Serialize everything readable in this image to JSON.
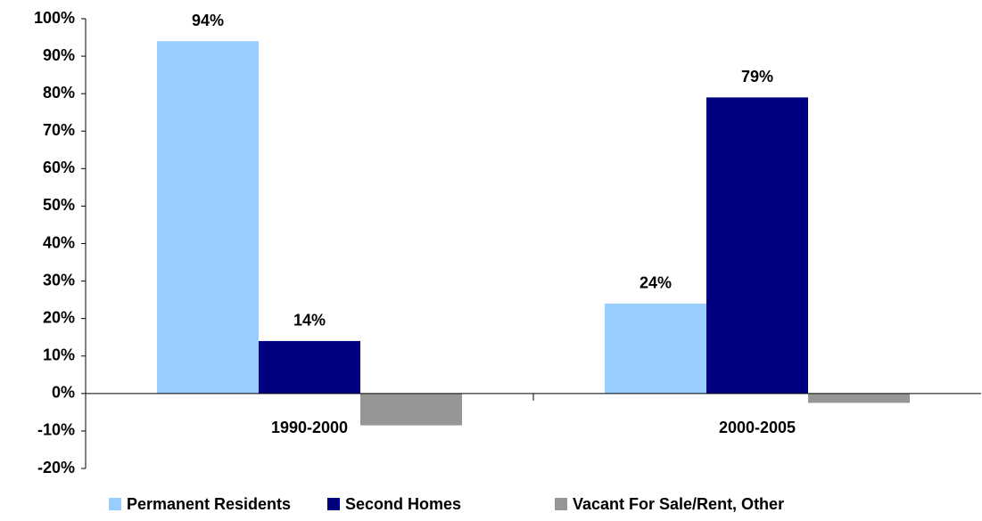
{
  "chart_data": {
    "type": "bar",
    "categories": [
      "1990-2000",
      "2000-2005"
    ],
    "series": [
      {
        "name": "Permanent Residents",
        "color": "#99ccff",
        "values": [
          94,
          24
        ],
        "value_labels": [
          "94%",
          "24%"
        ]
      },
      {
        "name": "Second Homes",
        "color": "#000080",
        "values": [
          14,
          79
        ],
        "value_labels": [
          "14%",
          "79%"
        ]
      },
      {
        "name": "Vacant For Sale/Rent, Other",
        "color": "#969696",
        "values": [
          -8.5,
          -2.5
        ]
      }
    ],
    "ylim": [
      -20,
      100
    ],
    "yticks": [
      {
        "value": -20,
        "label": "-20%"
      },
      {
        "value": -10,
        "label": "-10%"
      },
      {
        "value": 0,
        "label": "0%"
      },
      {
        "value": 10,
        "label": "10%"
      },
      {
        "value": 20,
        "label": "20%"
      },
      {
        "value": 30,
        "label": "30%"
      },
      {
        "value": 40,
        "label": "40%"
      },
      {
        "value": 50,
        "label": "50%"
      },
      {
        "value": 60,
        "label": "60%"
      },
      {
        "value": 70,
        "label": "70%"
      },
      {
        "value": 80,
        "label": "80%"
      },
      {
        "value": 90,
        "label": "90%"
      },
      {
        "value": 100,
        "label": "100%"
      }
    ],
    "grid": false,
    "legend": "bottom"
  }
}
